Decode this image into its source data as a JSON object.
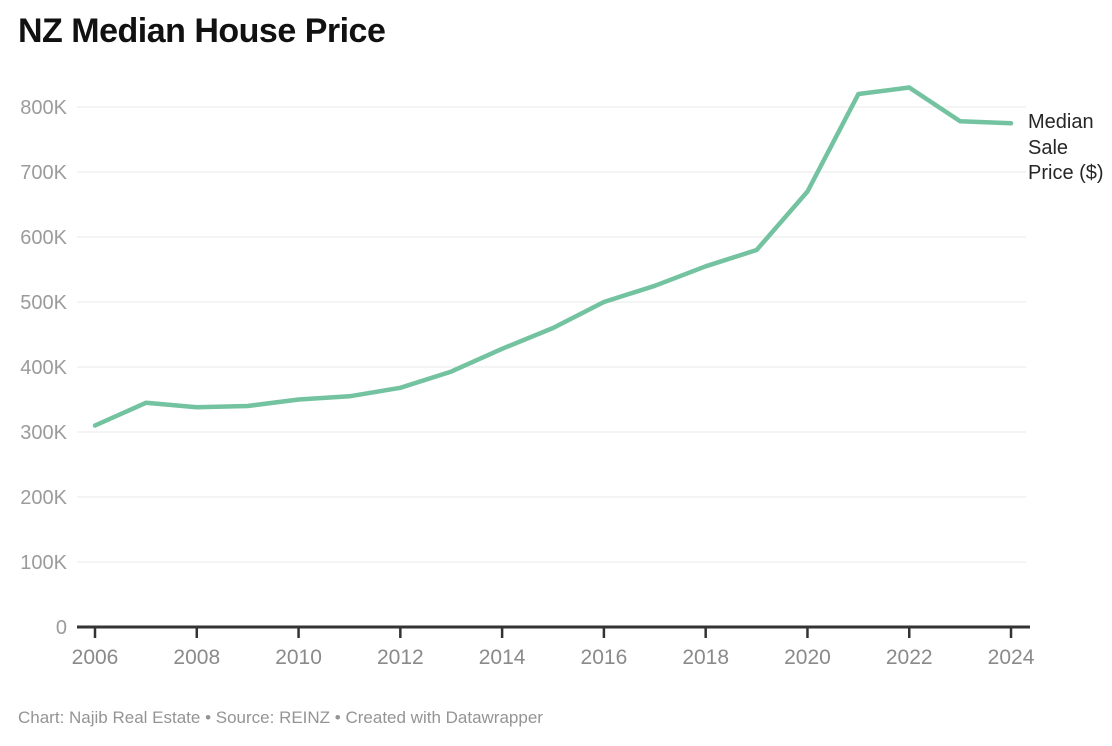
{
  "title": "NZ Median House Price",
  "series_label": "Median Sale Price ($)",
  "footer": {
    "text": "Chart: Najib Real Estate • Source: REINZ • Created with Datawrapper"
  },
  "colors": {
    "line": "#73c2a0",
    "grid": "#e8e8e8",
    "axis": "#333333",
    "y_label": "#9b9b9b",
    "x_label": "#8a8a8a",
    "title": "#111111",
    "footer": "#949494",
    "series_label": "#262626",
    "background": "#ffffff"
  },
  "chart_data": {
    "type": "line",
    "title": "NZ Median House Price",
    "xlabel": "",
    "ylabel": "Median Sale Price ($)",
    "x": [
      2006,
      2007,
      2008,
      2009,
      2010,
      2011,
      2012,
      2013,
      2014,
      2015,
      2016,
      2017,
      2018,
      2019,
      2020,
      2021,
      2022,
      2023,
      2024
    ],
    "series": [
      {
        "name": "Median Sale Price ($)",
        "values": [
          310000,
          345000,
          338000,
          340000,
          350000,
          355000,
          368000,
          393000,
          428000,
          460000,
          500000,
          525000,
          555000,
          580000,
          670000,
          820000,
          830000,
          778000,
          775000
        ]
      }
    ],
    "ylim": [
      0,
      850000
    ],
    "y_ticks": [
      "0",
      "100K",
      "200K",
      "300K",
      "400K",
      "500K",
      "600K",
      "700K",
      "800K"
    ],
    "x_ticks": [
      2006,
      2008,
      2010,
      2012,
      2014,
      2016,
      2018,
      2020,
      2022,
      2024
    ],
    "grid": "horizontal",
    "legend_position": "right-of-line-end"
  }
}
